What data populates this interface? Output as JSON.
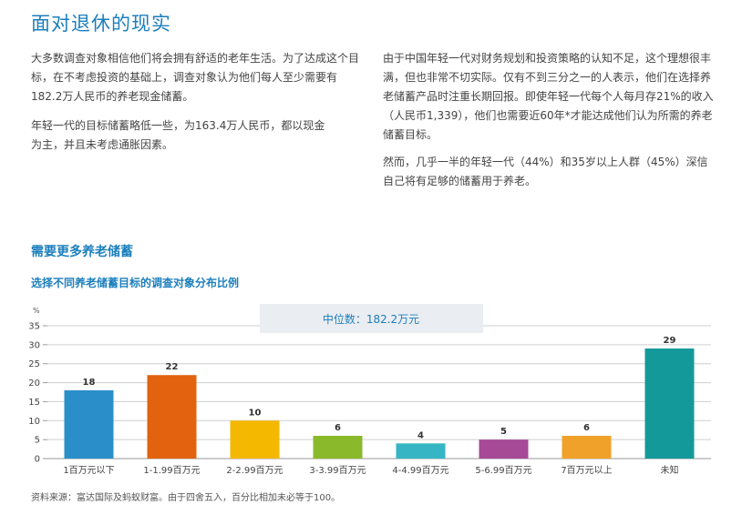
{
  "page": {
    "title": "面对退休的现实",
    "paragraphs_left": [
      "大多数调查对象相信他们将会拥有舒适的老年生活。为了达成这个目标，在不考虑投资的基础上，调查对象认为他们每人至少需要有182.2万人民币的养老现金储蓄。",
      "年轻一代的目标储蓄略低一些，为163.4万人民币，都以现金为主，并且未考虑通胀因素。"
    ],
    "paragraphs_right": [
      "由于中国年轻一代对财务规划和投资策略的认知不足，这个理想很丰满，但也非常不切实际。仅有不到三分之一的人表示，他们在选择养老储蓄产品时注重长期回报。即使年轻一代每个人每月存21%的收入（人民币1,339），他们也需要近60年*才能达成他们认为所需的养老储蓄目标。",
      "然而，几乎一半的年轻一代（44%）和35岁以上人群（45%）深信自己将有足够的储蓄用于养老。"
    ],
    "section_heading": "需要更多养老储蓄",
    "source": "资料来源：富达国际及蚂蚁财富。由于四舍五入，百分比相加未必等于100。"
  },
  "chart_data": {
    "type": "bar",
    "title": "选择不同养老储蓄目标的调查对象分布比例",
    "ylabel": "%",
    "ylim": [
      0,
      35
    ],
    "yticks": [
      0,
      5,
      10,
      15,
      20,
      25,
      30,
      35
    ],
    "grid": true,
    "annotation": "中位数：182.2万元",
    "categories": [
      "1百万元以下",
      "1-1.99百万元",
      "2-2.99百万元",
      "3-3.99百万元",
      "4-4.99百万元",
      "5-6.99百万元",
      "7百万元以上",
      "未知"
    ],
    "values": [
      18,
      22,
      10,
      6,
      4,
      5,
      6,
      29
    ],
    "colors": [
      "#2a8fc9",
      "#e2620f",
      "#f5b800",
      "#8ab92b",
      "#36b6c4",
      "#a64a96",
      "#f0a12a",
      "#14999a"
    ],
    "colors_meta": {
      "title": "#1c7fbd",
      "grid": "#cfcfcf",
      "annotation_bg": "#eaedf1"
    }
  }
}
